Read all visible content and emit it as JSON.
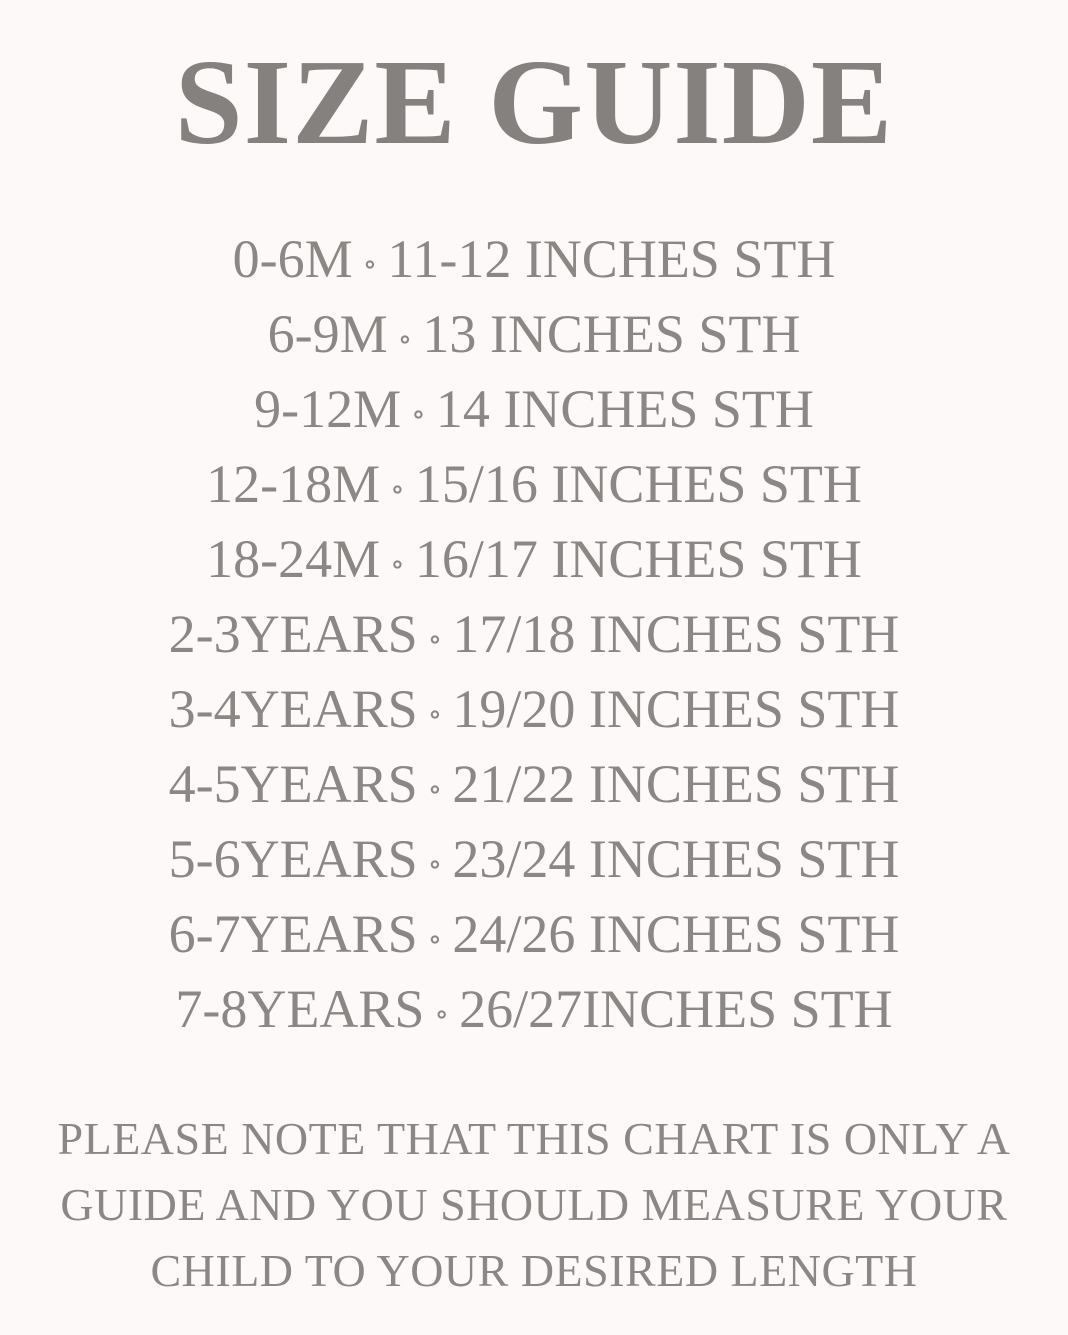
{
  "title": "SIZE GUIDE",
  "separator": "∘",
  "rows": [
    {
      "age": "0-6M",
      "length": "11-12 INCHES STH"
    },
    {
      "age": "6-9M",
      "length": "13 INCHES STH"
    },
    {
      "age": "9-12M",
      "length": "14 INCHES STH"
    },
    {
      "age": "12-18M",
      "length": "15/16 INCHES STH"
    },
    {
      "age": "18-24M",
      "length": "16/17 INCHES STH"
    },
    {
      "age": "2-3YEARS",
      "length": "17/18 INCHES STH"
    },
    {
      "age": "3-4YEARS",
      "length": "19/20 INCHES STH"
    },
    {
      "age": "4-5YEARS",
      "length": "21/22 INCHES STH"
    },
    {
      "age": "5-6YEARS",
      "length": "23/24 INCHES STH"
    },
    {
      "age": "6-7YEARS",
      "length": "24/26 INCHES STH"
    },
    {
      "age": "7-8YEARS",
      "length": "26/27INCHES STH"
    }
  ],
  "note": [
    "PLEASE NOTE THAT THIS CHART IS ONLY A",
    "GUIDE AND YOU SHOULD MEASURE YOUR",
    "CHILD TO YOUR DESIRED LENGTH"
  ],
  "colors": {
    "background": "#fdf9f8",
    "text": "#8a8784"
  }
}
